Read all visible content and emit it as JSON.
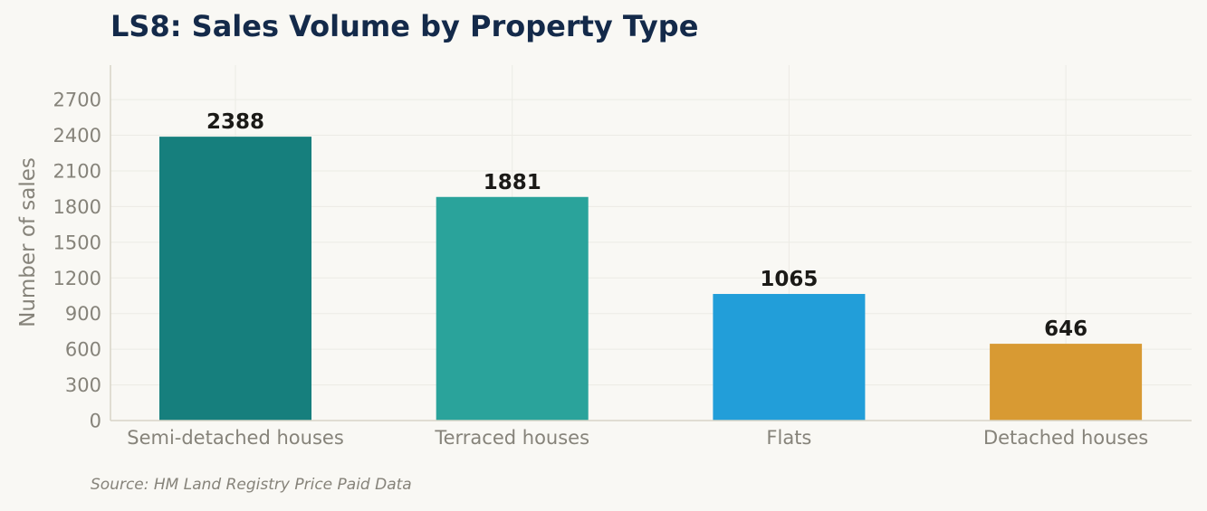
{
  "chart_data": {
    "type": "bar",
    "title": "LS8: Sales Volume by Property Type",
    "source": "Source: HM Land Registry Price Paid Data",
    "xlabel": "",
    "ylabel": "Number of sales",
    "categories": [
      "Semi-detached houses",
      "Terraced houses",
      "Flats",
      "Detached houses"
    ],
    "values": [
      2388,
      1881,
      1065,
      646
    ],
    "data_labels": [
      "2388",
      "1881",
      "1065",
      "646"
    ],
    "bar_colors": [
      "#167f7d",
      "#2aa39b",
      "#229ed9",
      "#d89a33"
    ],
    "yticks": [
      0,
      300,
      600,
      900,
      1200,
      1500,
      1800,
      2100,
      2400,
      2700
    ],
    "ylim": [
      0,
      2990
    ],
    "grid": true,
    "legend": "none"
  }
}
